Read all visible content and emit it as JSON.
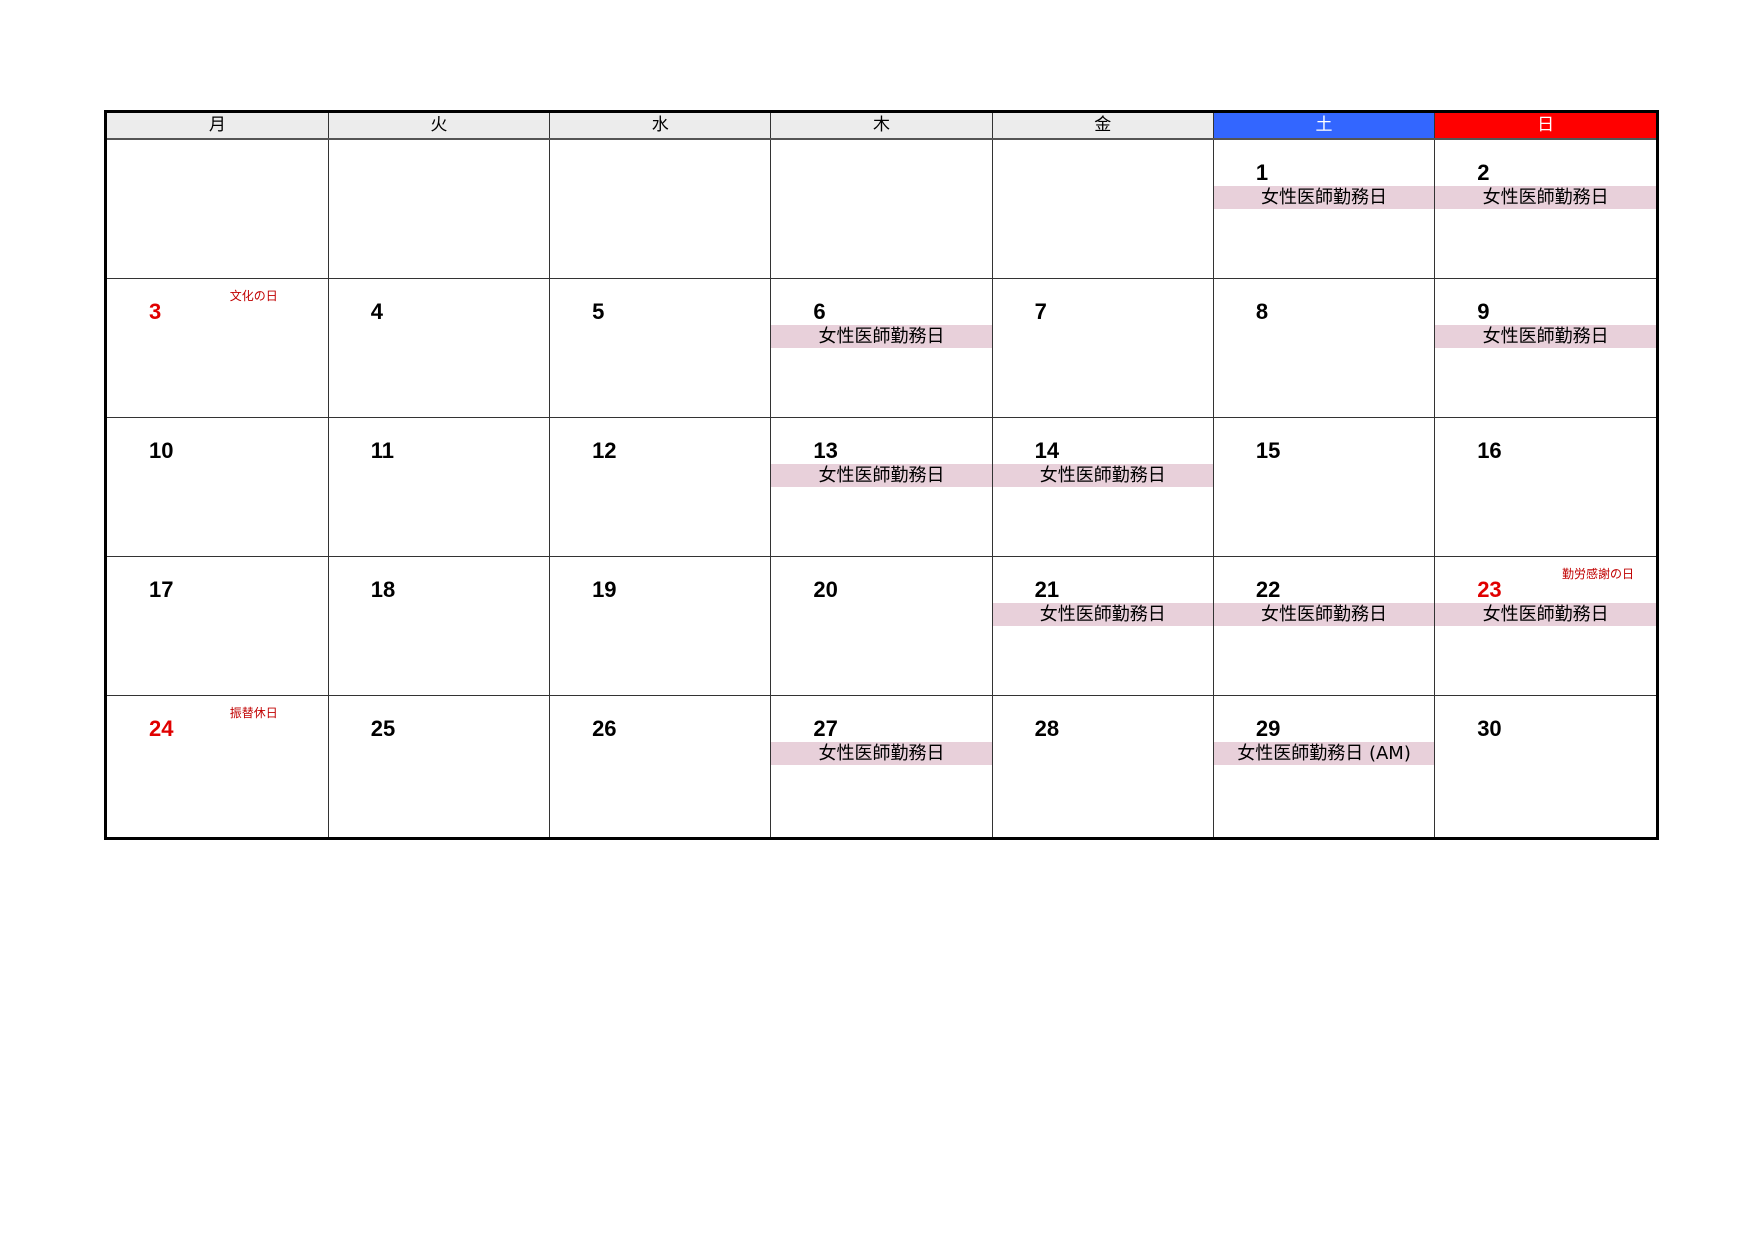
{
  "weekdays": [
    "月",
    "火",
    "水",
    "木",
    "金",
    "土",
    "日"
  ],
  "colors": {
    "saturday": "#3366ff",
    "sunday": "#ff0000",
    "holiday": "#e00000",
    "event_bg": "#e8d0da",
    "header_bg": "#ececec"
  },
  "weeks": [
    [
      {
        "day": ""
      },
      {
        "day": ""
      },
      {
        "day": ""
      },
      {
        "day": ""
      },
      {
        "day": ""
      },
      {
        "day": "1",
        "event": "女性医師勤務日"
      },
      {
        "day": "2",
        "event": "女性医師勤務日"
      }
    ],
    [
      {
        "day": "3",
        "holiday": "文化の日"
      },
      {
        "day": "4"
      },
      {
        "day": "5"
      },
      {
        "day": "6",
        "event": "女性医師勤務日"
      },
      {
        "day": "7"
      },
      {
        "day": "8"
      },
      {
        "day": "9",
        "event": "女性医師勤務日"
      }
    ],
    [
      {
        "day": "10"
      },
      {
        "day": "11"
      },
      {
        "day": "12"
      },
      {
        "day": "13",
        "event": "女性医師勤務日"
      },
      {
        "day": "14",
        "event": "女性医師勤務日"
      },
      {
        "day": "15"
      },
      {
        "day": "16"
      }
    ],
    [
      {
        "day": "17"
      },
      {
        "day": "18"
      },
      {
        "day": "19"
      },
      {
        "day": "20"
      },
      {
        "day": "21",
        "event": "女性医師勤務日"
      },
      {
        "day": "22",
        "event": "女性医師勤務日"
      },
      {
        "day": "23",
        "holiday": "勤労感謝の日",
        "event": "女性医師勤務日"
      }
    ],
    [
      {
        "day": "24",
        "holiday": "振替休日"
      },
      {
        "day": "25"
      },
      {
        "day": "26"
      },
      {
        "day": "27",
        "event": "女性医師勤務日"
      },
      {
        "day": "28"
      },
      {
        "day": "29",
        "event": "女性医師勤務日 (AM)"
      },
      {
        "day": "30"
      }
    ]
  ]
}
